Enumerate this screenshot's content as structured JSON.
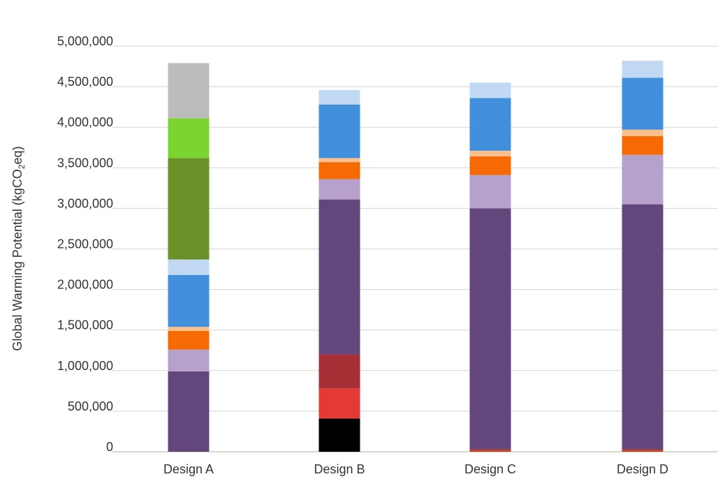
{
  "chart_data": {
    "type": "bar",
    "stacked": true,
    "title": "",
    "xlabel": "",
    "ylabel_main": "Global Warming Potential (kgCO",
    "ylabel_sub": "2",
    "ylabel_tail": "eq)",
    "ylim": [
      0,
      5000000
    ],
    "y_ticks": [
      0,
      500000,
      1000000,
      1500000,
      2000000,
      2500000,
      3000000,
      3500000,
      4000000,
      4500000,
      5000000
    ],
    "y_tick_labels": [
      "0",
      "500,000",
      "1,000,000",
      "1,500,000",
      "2,000,000",
      "2,500,000",
      "3,000,000",
      "3,500,000",
      "4,000,000",
      "4,500,000",
      "5,000,000"
    ],
    "grid": true,
    "legend": "none",
    "categories": [
      "Design A",
      "Design B",
      "Design C",
      "Design D"
    ],
    "series": [
      {
        "color": "#000000",
        "values": [
          0,
          410000,
          0,
          0
        ]
      },
      {
        "color": "#e53935",
        "values": [
          0,
          370000,
          0,
          0
        ]
      },
      {
        "color": "#a63035",
        "values": [
          0,
          420000,
          0,
          0
        ]
      },
      {
        "color": "#c1432a",
        "values": [
          0,
          0,
          30000,
          30000
        ]
      },
      {
        "color": "#63477c",
        "values": [
          990000,
          1910000,
          2970000,
          3020000
        ]
      },
      {
        "color": "#b6a0cc",
        "values": [
          270000,
          250000,
          410000,
          610000
        ]
      },
      {
        "color": "#f56a02",
        "values": [
          230000,
          210000,
          230000,
          230000
        ]
      },
      {
        "color": "#f9c08e",
        "values": [
          50000,
          50000,
          70000,
          80000
        ]
      },
      {
        "color": "#428fdc",
        "values": [
          640000,
          660000,
          650000,
          640000
        ]
      },
      {
        "color": "#c1d9f2",
        "values": [
          190000,
          180000,
          190000,
          210000
        ]
      },
      {
        "color": "#6b9129",
        "values": [
          1250000,
          0,
          0,
          0
        ]
      },
      {
        "color": "#7cd431",
        "values": [
          490000,
          0,
          0,
          0
        ]
      },
      {
        "color": "#bcbcbc",
        "values": [
          680000,
          0,
          0,
          0
        ]
      }
    ]
  }
}
